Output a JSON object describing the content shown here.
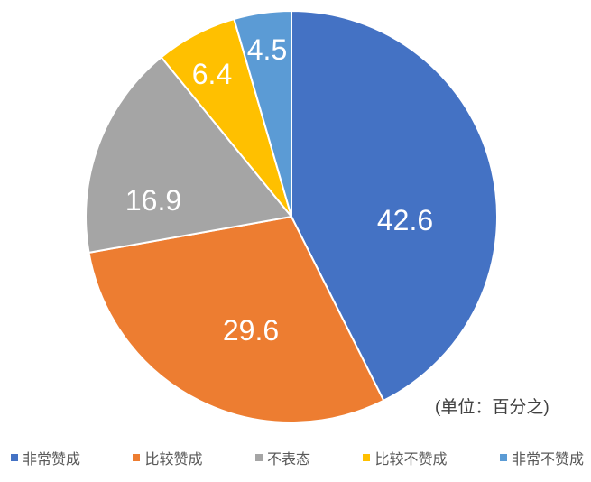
{
  "chart_data": {
    "type": "pie",
    "title": "",
    "unit_note": "(单位：百分之)",
    "categories": [
      "非常赞成",
      "比较赞成",
      "不表态",
      "比较不赞成",
      "非常不赞成"
    ],
    "values": [
      42.6,
      29.6,
      16.9,
      6.4,
      4.5
    ],
    "colors": [
      "#4472C4",
      "#ED7D31",
      "#A5A5A5",
      "#FFC000",
      "#5B9BD5"
    ],
    "data_label_color": "#FFFFFF",
    "legend_position": "bottom",
    "legend_text_color": "#595959",
    "start_angle": "12-oclock",
    "direction": "clockwise",
    "background": "#FFFFFF"
  }
}
